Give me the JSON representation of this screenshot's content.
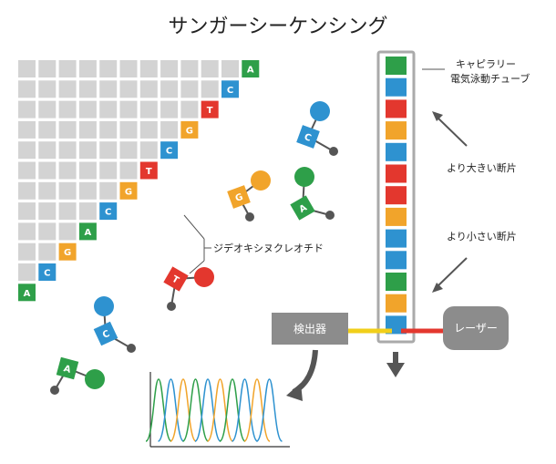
{
  "title": "サンガーシーケンシング",
  "labels": {
    "capillary_line1": "キャピラリー",
    "capillary_line2": "電気泳動チューブ",
    "larger_fragments": "より大きい断片",
    "smaller_fragments": "より小さい断片",
    "ddntp": "ジデオキシヌクレオチド",
    "detector": "検出器",
    "laser": "レーザー"
  },
  "colors": {
    "A": "#2e9f49",
    "C": "#2e92d0",
    "G": "#f1a42b",
    "T": "#e3372e",
    "grid": "#d3d3d3",
    "box": "#8c8c8c"
  },
  "staircase": [
    "A",
    "C",
    "G",
    "A",
    "C",
    "G",
    "T",
    "C",
    "G",
    "T",
    "C",
    "A"
  ],
  "capillary_bands": [
    "A",
    "C",
    "T",
    "G",
    "C",
    "T",
    "T",
    "G",
    "C",
    "C",
    "A",
    "G",
    "C"
  ],
  "free_nucleotides": [
    {
      "base": "C",
      "label": "C"
    },
    {
      "base": "G",
      "label": "G"
    },
    {
      "base": "A",
      "label": "A"
    },
    {
      "base": "T",
      "label": "T"
    },
    {
      "base": "C",
      "label": "C"
    },
    {
      "base": "A",
      "label": "A"
    }
  ],
  "icons": [
    "arrow-up-icon",
    "arrow-down-icon",
    "curved-arrow-icon"
  ]
}
